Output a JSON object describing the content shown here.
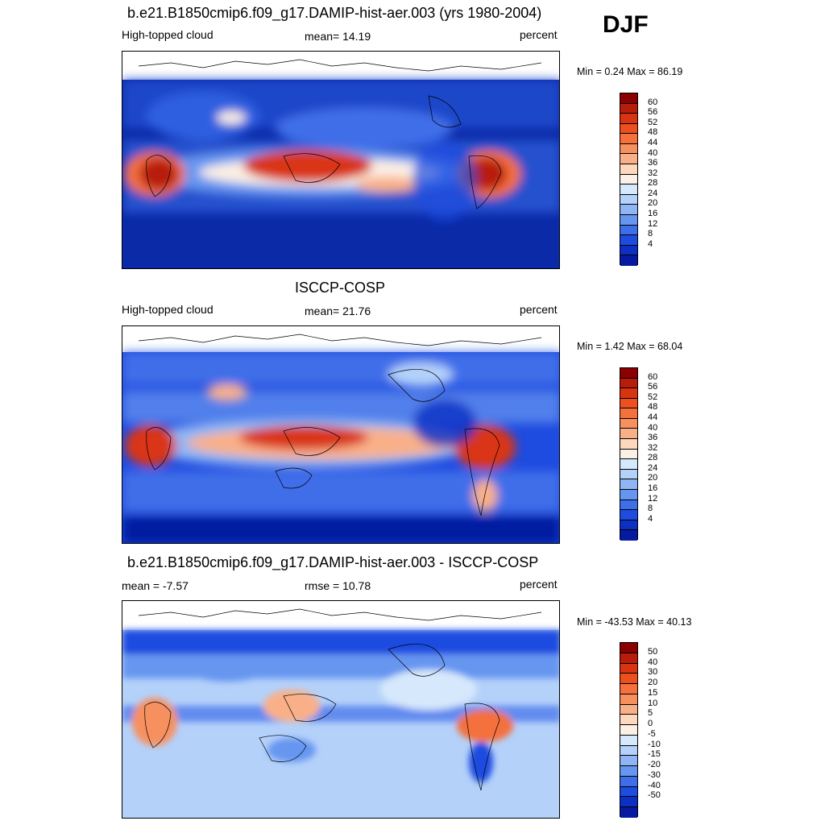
{
  "season": "DJF",
  "panels": [
    {
      "title": "b.e21.B1850cmip6.f09_g17.DAMIP-hist-aer.003 (yrs 1980-2004)",
      "left_label": "High-topped cloud",
      "center_label": "mean=  14.19",
      "right_label": "percent",
      "minmax": "Min =   0.24 Max =  86.19"
    },
    {
      "title": "ISCCP-COSP",
      "left_label": "High-topped cloud",
      "center_label": "mean=  21.76",
      "right_label": "percent",
      "minmax": "Min =   1.42 Max =  68.04"
    },
    {
      "title": "b.e21.B1850cmip6.f09_g17.DAMIP-hist-aer.003 - ISCCP-COSP",
      "left_label": "mean =  -7.57",
      "center_label": "rmse =  10.78",
      "right_label": "percent",
      "minmax": "Min = -43.53 Max =  40.13"
    }
  ],
  "colorbars": {
    "abs": {
      "labels": [
        "60",
        "56",
        "52",
        "48",
        "44",
        "40",
        "36",
        "32",
        "28",
        "24",
        "20",
        "16",
        "12",
        "8",
        "4"
      ],
      "colors": [
        "#8b0000",
        "#b81d0b",
        "#d93412",
        "#ee4f1f",
        "#f4703d",
        "#f7905f",
        "#f9b089",
        "#fdd8bc",
        "#fbf0e5",
        "#d6e8fb",
        "#b4d1fa",
        "#8fb5f5",
        "#6696f0",
        "#3f6ee9",
        "#1e4be0",
        "#0c2fc4",
        "#051aa1"
      ]
    },
    "diff": {
      "labels": [
        "50",
        "40",
        "30",
        "20",
        "15",
        "10",
        "5",
        "0",
        "-5",
        "-10",
        "-15",
        "-20",
        "-30",
        "-40",
        "-50"
      ],
      "colors": [
        "#8b0000",
        "#b81d0b",
        "#d93412",
        "#ee4f1f",
        "#f4703d",
        "#f7905f",
        "#f9b089",
        "#fdd8bc",
        "#fbf0e5",
        "#d6e8fb",
        "#b4d1fa",
        "#8fb5f5",
        "#6696f0",
        "#3f6ee9",
        "#1e4be0",
        "#0c2fc4",
        "#051aa1"
      ]
    }
  },
  "chart_data": [
    {
      "type": "heatmap",
      "title": "b.e21.B1850cmip6.f09_g17.DAMIP-hist-aer.003 (yrs 1980-2004)",
      "variable": "High-topped cloud",
      "units": "percent",
      "season": "DJF",
      "mean": 14.19,
      "min": 0.24,
      "max": 86.19,
      "levels": [
        4,
        8,
        12,
        16,
        20,
        24,
        28,
        32,
        36,
        40,
        44,
        48,
        52,
        56,
        60
      ]
    },
    {
      "type": "heatmap",
      "title": "ISCCP-COSP",
      "variable": "High-topped cloud",
      "units": "percent",
      "season": "DJF",
      "mean": 21.76,
      "min": 1.42,
      "max": 68.04,
      "levels": [
        4,
        8,
        12,
        16,
        20,
        24,
        28,
        32,
        36,
        40,
        44,
        48,
        52,
        56,
        60
      ]
    },
    {
      "type": "heatmap",
      "title": "b.e21.B1850cmip6.f09_g17.DAMIP-hist-aer.003 - ISCCP-COSP",
      "units": "percent",
      "season": "DJF",
      "mean": -7.57,
      "rmse": 10.78,
      "min": -43.53,
      "max": 40.13,
      "levels": [
        -50,
        -40,
        -30,
        -20,
        -15,
        -10,
        -5,
        0,
        5,
        10,
        15,
        20,
        30,
        40,
        50
      ]
    }
  ]
}
